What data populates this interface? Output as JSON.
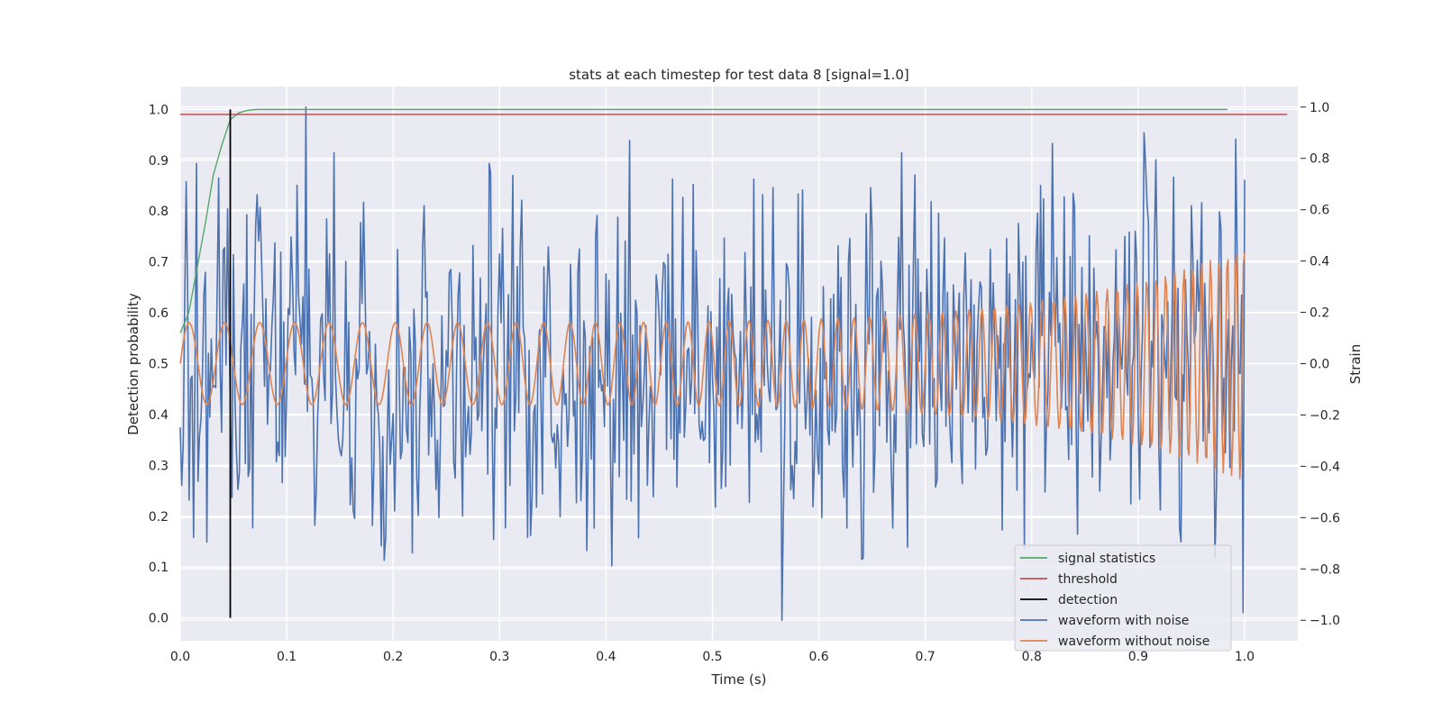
{
  "chart_data": {
    "type": "line",
    "title": "stats at each timestep for test data 8 [signal=1.0]",
    "xlabel": "Time (s)",
    "ylabel": "Detection probability",
    "y2label": "Strain",
    "xlim": [
      0.0,
      1.05
    ],
    "ylim": [
      -0.045,
      1.045
    ],
    "y2lim": [
      -1.08,
      1.08
    ],
    "grid": true,
    "background": "#eaeaf2",
    "legend_position": "lower-right",
    "x_ticks": [
      0.0,
      0.1,
      0.2,
      0.3,
      0.4,
      0.5,
      0.6,
      0.7,
      0.8,
      0.9,
      1.0
    ],
    "x_tick_labels": [
      "0.0",
      "0.1",
      "0.2",
      "0.3",
      "0.4",
      "0.5",
      "0.6",
      "0.7",
      "0.8",
      "0.9",
      "1.0"
    ],
    "y_ticks": [
      0.0,
      0.1,
      0.2,
      0.3,
      0.4,
      0.5,
      0.6,
      0.7,
      0.8,
      0.9,
      1.0
    ],
    "y_tick_labels": [
      "0.0",
      "0.1",
      "0.2",
      "0.3",
      "0.4",
      "0.5",
      "0.6",
      "0.7",
      "0.8",
      "0.9",
      "1.0"
    ],
    "y2_ticks": [
      -1.0,
      -0.8,
      -0.6,
      -0.4,
      -0.2,
      0.0,
      0.2,
      0.4,
      0.6,
      0.8,
      1.0
    ],
    "y2_tick_labels": [
      "−1.0",
      "−0.8",
      "−0.6",
      "−0.4",
      "−0.2",
      "0.0",
      "0.2",
      "0.4",
      "0.6",
      "0.8",
      "1.0"
    ],
    "series": [
      {
        "name": "signal statistics",
        "axis": "left",
        "color": "#55a868",
        "x": [
          0.0,
          0.008,
          0.016,
          0.024,
          0.031,
          0.039,
          0.047,
          0.055,
          0.063,
          0.071,
          0.1,
          0.2,
          0.4,
          0.6,
          0.8,
          0.984
        ],
        "y": [
          0.56,
          0.6,
          0.69,
          0.78,
          0.87,
          0.93,
          0.98,
          0.993,
          0.998,
          1.0,
          1.0,
          1.0,
          1.0,
          1.0,
          1.0,
          1.0
        ]
      },
      {
        "name": "threshold",
        "axis": "left",
        "color": "#c44e52",
        "x": [
          0.0,
          1.04
        ],
        "y": [
          0.99,
          0.99
        ]
      },
      {
        "name": "detection",
        "axis": "left",
        "color": "#000000",
        "x": [
          0.047,
          0.047
        ],
        "y": [
          0.0,
          1.0
        ]
      },
      {
        "name": "waveform with noise",
        "axis": "right",
        "color": "#4c72b0",
        "x_start": 0.0,
        "x_end": 1.0,
        "amplitude_range": [
          -1.0,
          1.0
        ],
        "peaks": [
          {
            "x": 0.118,
            "y": 1.0
          },
          {
            "x": 0.565,
            "y": -1.0
          },
          {
            "x": 0.015,
            "y": 0.78
          },
          {
            "x": 0.422,
            "y": 0.87
          },
          {
            "x": 0.905,
            "y": 0.9
          },
          {
            "x": 0.189,
            "y": -0.71
          },
          {
            "x": 0.998,
            "y": -0.97
          }
        ]
      },
      {
        "name": "waveform without noise",
        "axis": "right",
        "color": "#dd8452",
        "x_start": 0.0,
        "x_end": 1.0,
        "envelope_start": 0.16,
        "envelope_end": 0.46,
        "frequency_start_hz": 30,
        "frequency_end_hz": 130
      }
    ]
  }
}
